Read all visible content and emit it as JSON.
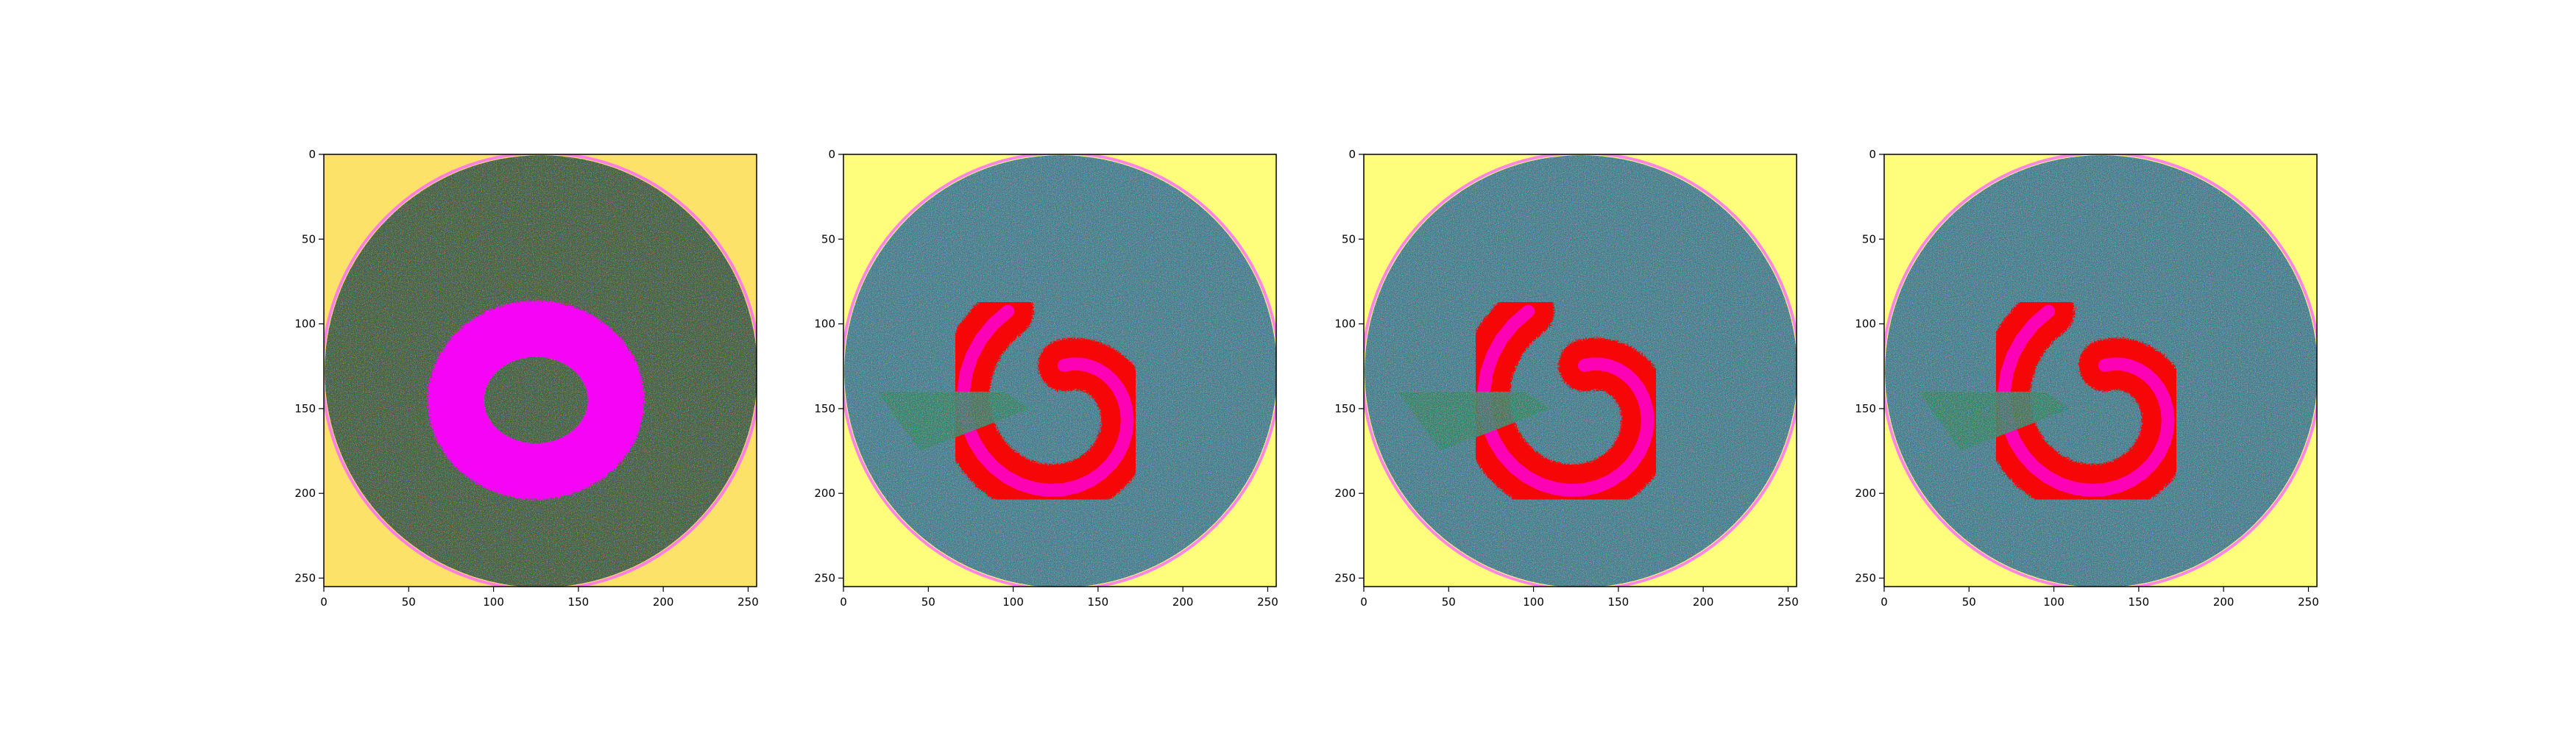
{
  "chart_data": [
    {
      "type": "heatmap",
      "panel": 1,
      "content": "circular field, dark green/grey speckled texture with magenta ring centered near (125,140)",
      "title": "",
      "xlabel": "",
      "ylabel": "",
      "xlim": [
        0,
        255
      ],
      "ylim": [
        255,
        0
      ],
      "x_ticks": [
        0,
        50,
        100,
        150,
        200,
        250
      ],
      "y_ticks": [
        0,
        50,
        100,
        150,
        200,
        250
      ],
      "x_tick_labels": [
        "0",
        "50",
        "100",
        "150",
        "200",
        "250"
      ],
      "y_tick_labels": [
        "0",
        "50",
        "100",
        "150",
        "200",
        "250"
      ],
      "background_color": "#fde26a",
      "disk_color": "#4e6a4a",
      "feature_color": "#ff00ff",
      "feature_shape": "ring"
    },
    {
      "type": "heatmap",
      "panel": 2,
      "content": "circular field, teal/blue speckled texture with red/magenta spiral 'comma' shape and a green tongue toward left",
      "title": "",
      "xlabel": "",
      "ylabel": "",
      "xlim": [
        0,
        255
      ],
      "ylim": [
        255,
        0
      ],
      "x_ticks": [
        0,
        50,
        100,
        150,
        200,
        250
      ],
      "y_ticks": [
        0,
        50,
        100,
        150,
        200,
        250
      ],
      "x_tick_labels": [
        "0",
        "50",
        "100",
        "150",
        "200",
        "250"
      ],
      "y_tick_labels": [
        "0",
        "50",
        "100",
        "150",
        "200",
        "250"
      ],
      "background_color": "#fefd7c",
      "disk_color": "#4f8a9a",
      "feature_color": "#ff0000",
      "feature_shape": "spiral"
    },
    {
      "type": "heatmap",
      "panel": 3,
      "content": "circular field, teal/blue speckled texture with red/magenta spiral shape",
      "title": "",
      "xlabel": "",
      "ylabel": "",
      "xlim": [
        0,
        255
      ],
      "ylim": [
        255,
        0
      ],
      "x_ticks": [
        0,
        50,
        100,
        150,
        200,
        250
      ],
      "y_ticks": [
        0,
        50,
        100,
        150,
        200,
        250
      ],
      "x_tick_labels": [
        "0",
        "50",
        "100",
        "150",
        "200",
        "250"
      ],
      "y_tick_labels": [
        "0",
        "50",
        "100",
        "150",
        "200",
        "250"
      ],
      "background_color": "#fefd7c",
      "disk_color": "#4f8a9a",
      "feature_color": "#ff0000",
      "feature_shape": "spiral"
    },
    {
      "type": "heatmap",
      "panel": 4,
      "content": "circular field, teal/blue speckled texture with red spiral shape",
      "title": "",
      "xlabel": "",
      "ylabel": "",
      "xlim": [
        0,
        255
      ],
      "ylim": [
        255,
        0
      ],
      "x_ticks": [
        0,
        50,
        100,
        150,
        200,
        250
      ],
      "y_ticks": [
        0,
        50,
        100,
        150,
        200,
        250
      ],
      "x_tick_labels": [
        "0",
        "50",
        "100",
        "150",
        "200",
        "250"
      ],
      "y_tick_labels": [
        "0",
        "50",
        "100",
        "150",
        "200",
        "250"
      ],
      "background_color": "#fefd7c",
      "disk_color": "#4f8a9a",
      "feature_color": "#ff0000",
      "feature_shape": "spiral"
    }
  ]
}
